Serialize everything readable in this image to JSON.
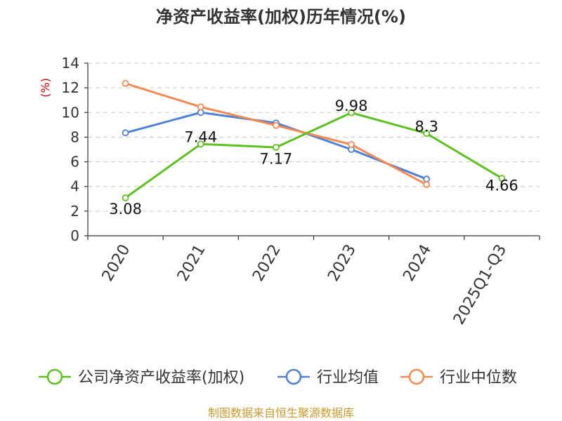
{
  "chart_data": {
    "type": "line",
    "title": "净资产收益率(加权)历年情况(%)",
    "ylabel": "(%)",
    "xlabel": "",
    "categories": [
      "2020",
      "2021",
      "2022",
      "2023",
      "2024",
      "2025Q1-Q3"
    ],
    "ylim": [
      0,
      14
    ],
    "yticks": [
      0,
      2,
      4,
      6,
      8,
      10,
      12,
      14
    ],
    "grid": true,
    "legend_position": "bottom",
    "series": [
      {
        "name": "公司净资产收益率(加权)",
        "color": "#5cc120",
        "values": [
          3.08,
          7.44,
          7.17,
          9.98,
          8.3,
          4.66
        ],
        "labels": [
          "3.08",
          "7.44",
          "7.17",
          "9.98",
          "8.3",
          "4.66"
        ]
      },
      {
        "name": "行业均值",
        "color": "#4e80d6",
        "values": [
          8.35,
          10.0,
          9.15,
          7.0,
          4.6,
          null
        ]
      },
      {
        "name": "行业中位数",
        "color": "#f28a52",
        "values": [
          12.35,
          10.45,
          8.95,
          7.4,
          4.15,
          null
        ]
      }
    ],
    "source": "制图数据来自恒生聚源数据库"
  }
}
